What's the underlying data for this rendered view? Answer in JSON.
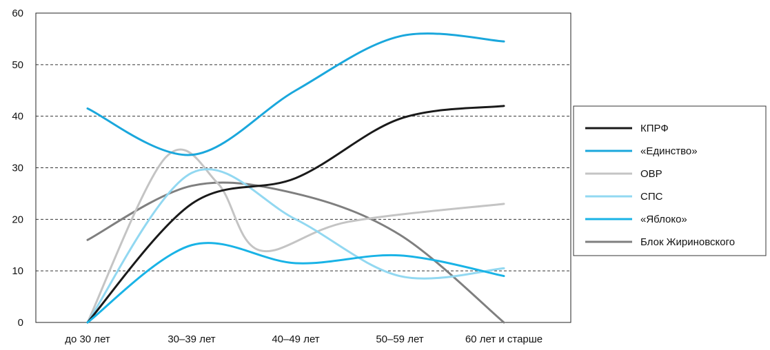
{
  "chart_data": {
    "type": "line",
    "title": "",
    "xlabel": "",
    "ylabel": "",
    "categories": [
      "до 30 лет",
      "30–39 лет",
      "40–49 лет",
      "50–59 лет",
      "60 лет и старше"
    ],
    "ylim": [
      0,
      60
    ],
    "yticks": [
      "0",
      "10",
      "20",
      "30",
      "40",
      "50",
      "60"
    ],
    "grid": "horizontal dashed",
    "legend_position": "right",
    "series": [
      {
        "name": "КПРФ",
        "color": "#1a1a1a",
        "width": 3,
        "points": [
          [
            0,
            0
          ],
          [
            1,
            23
          ],
          [
            2,
            28
          ],
          [
            3,
            39.5
          ],
          [
            4,
            42
          ]
        ]
      },
      {
        "name": "«Единство»",
        "color": "#1aa7dc",
        "width": 3,
        "points": [
          [
            0,
            41.5
          ],
          [
            1,
            32.5
          ],
          [
            2,
            45
          ],
          [
            3,
            55.5
          ],
          [
            4,
            54.5
          ]
        ]
      },
      {
        "name": "ОВР",
        "color": "#c4c4c4",
        "width": 3,
        "points": [
          [
            0,
            0
          ],
          [
            0.75,
            32
          ],
          [
            1.25,
            27
          ],
          [
            1.65,
            14
          ],
          [
            2.5,
            19.5
          ],
          [
            4,
            23
          ]
        ]
      },
      {
        "name": "СПС",
        "color": "#92d8f1",
        "width": 3,
        "points": [
          [
            0,
            0
          ],
          [
            1,
            29
          ],
          [
            2,
            20
          ],
          [
            3,
            9
          ],
          [
            4,
            10.5
          ]
        ]
      },
      {
        "name": "«Яблоко»",
        "color": "#19b3e6",
        "width": 3,
        "points": [
          [
            0,
            0
          ],
          [
            1,
            15
          ],
          [
            2,
            11.5
          ],
          [
            3,
            13
          ],
          [
            4,
            9
          ]
        ]
      },
      {
        "name": "Блок Жириновского",
        "color": "#7f7f7f",
        "width": 3,
        "points": [
          [
            0,
            16
          ],
          [
            1,
            26.5
          ],
          [
            2,
            25
          ],
          [
            3,
            17
          ],
          [
            4,
            0
          ]
        ]
      }
    ]
  }
}
